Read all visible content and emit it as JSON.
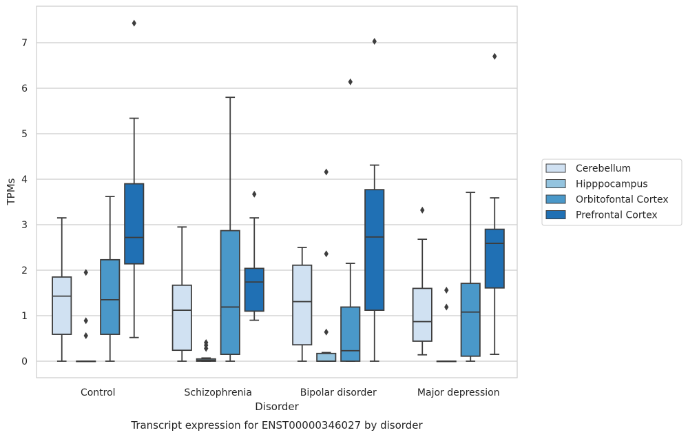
{
  "chart_data": {
    "type": "box",
    "title": "Transcript expression for ENST00000346027 by disorder",
    "xlabel": "Disorder",
    "ylabel": "TPMs",
    "ylim": [
      -0.35,
      7.8
    ],
    "yticks": [
      0,
      1,
      2,
      3,
      4,
      5,
      6,
      7
    ],
    "grid": "horizontal",
    "legend_position": "right",
    "categories": [
      "Control",
      "Schizophrenia",
      "Bipolar disorder",
      "Major depression"
    ],
    "series": [
      {
        "name": "Cerebellum",
        "color": "#d0e1f2",
        "boxes": [
          {
            "whislo": 0,
            "q1": 0.59,
            "median": 1.43,
            "q3": 1.85,
            "whishi": 3.15,
            "fliers": []
          },
          {
            "whislo": 0,
            "q1": 0.24,
            "median": 1.12,
            "q3": 1.67,
            "whishi": 2.95,
            "fliers": []
          },
          {
            "whislo": 0,
            "q1": 0.36,
            "median": 1.31,
            "q3": 2.11,
            "whishi": 2.5,
            "fliers": []
          },
          {
            "whislo": 0.14,
            "q1": 0.44,
            "median": 0.87,
            "q3": 1.6,
            "whishi": 2.68,
            "fliers": [
              3.32
            ]
          }
        ]
      },
      {
        "name": "Hipppocampus",
        "color": "#94c4df",
        "boxes": [
          {
            "whislo": 0,
            "q1": 0,
            "median": 0,
            "q3": 0,
            "whishi": 0,
            "fliers": [
              0.56,
              0.89,
              1.95
            ]
          },
          {
            "whislo": 0,
            "q1": 0,
            "median": 0.02,
            "q3": 0.05,
            "whishi": 0.07,
            "fliers": [
              0.28,
              0.35,
              0.41
            ]
          },
          {
            "whislo": 0,
            "q1": 0,
            "median": 0,
            "q3": 0.17,
            "whishi": 0.19,
            "fliers": [
              0.64,
              2.36,
              4.16
            ]
          },
          {
            "whislo": 0,
            "q1": 0,
            "median": 0,
            "q3": 0,
            "whishi": 0,
            "fliers": [
              1.19,
              1.56
            ]
          }
        ]
      },
      {
        "name": "Orbitofontal Cortex",
        "color": "#4a98c9",
        "boxes": [
          {
            "whislo": 0,
            "q1": 0.59,
            "median": 1.35,
            "q3": 2.23,
            "whishi": 3.62,
            "fliers": []
          },
          {
            "whislo": 0,
            "q1": 0.15,
            "median": 1.19,
            "q3": 2.87,
            "whishi": 5.8,
            "fliers": []
          },
          {
            "whislo": 0,
            "q1": 0,
            "median": 0.23,
            "q3": 1.19,
            "whishi": 2.15,
            "fliers": [
              6.14
            ]
          },
          {
            "whislo": 0,
            "q1": 0.11,
            "median": 1.08,
            "q3": 1.71,
            "whishi": 3.71,
            "fliers": []
          }
        ]
      },
      {
        "name": "Prefrontal Cortex",
        "color": "#2070b4",
        "boxes": [
          {
            "whislo": 0.52,
            "q1": 2.14,
            "median": 2.72,
            "q3": 3.9,
            "whishi": 5.34,
            "fliers": [
              7.43
            ]
          },
          {
            "whislo": 0.9,
            "q1": 1.1,
            "median": 1.74,
            "q3": 2.04,
            "whishi": 3.15,
            "fliers": [
              3.67
            ]
          },
          {
            "whislo": 0,
            "q1": 1.12,
            "median": 2.73,
            "q3": 3.77,
            "whishi": 4.31,
            "fliers": [
              7.03
            ]
          },
          {
            "whislo": 0.15,
            "q1": 1.61,
            "median": 2.59,
            "q3": 2.9,
            "whishi": 3.59,
            "fliers": [
              6.7
            ]
          }
        ]
      }
    ]
  }
}
